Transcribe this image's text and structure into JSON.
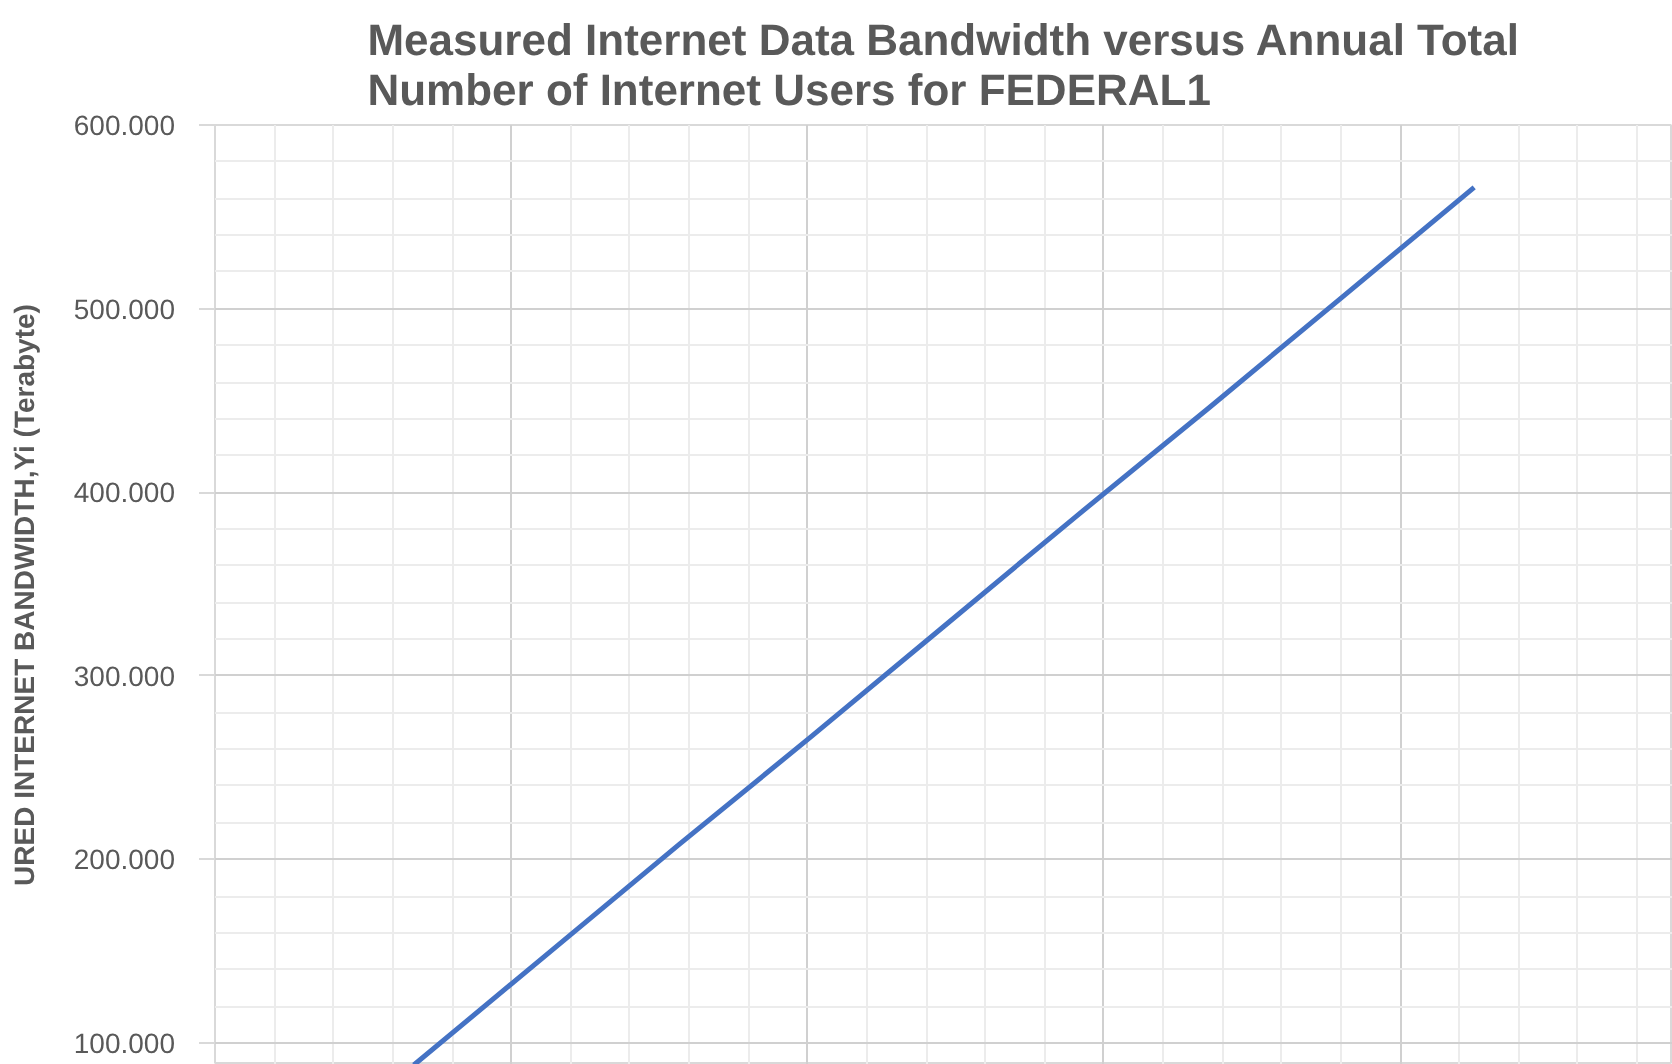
{
  "chart_data": {
    "type": "line",
    "title": "Measured Internet Data Bandwidth versus Annual Total Number of Internet Users for FEDERAL1",
    "ylabel": "URED INTERNET BANDWIDTH,Yi (Terabyte)",
    "categories": [
      null,
      null,
      null,
      null,
      null,
      null,
      null,
      null,
      null,
      null,
      null
    ],
    "series": [
      {
        "color": "#4472c4",
        "values": [
          null,
          88,
          148,
          208,
          267,
          327,
          387,
          446,
          506,
          566,
          null
        ]
      }
    ],
    "ylim": [
      88,
      600
    ],
    "yticks": [
      {
        "value": 100,
        "label": "100.000"
      },
      {
        "value": 200,
        "label": "200.000"
      },
      {
        "value": 300,
        "label": "300.000"
      },
      {
        "value": 400,
        "label": "400.000"
      },
      {
        "value": 500,
        "label": "500.000"
      },
      {
        "value": 600,
        "label": "600.000"
      }
    ],
    "grid": true,
    "marker": "none"
  }
}
